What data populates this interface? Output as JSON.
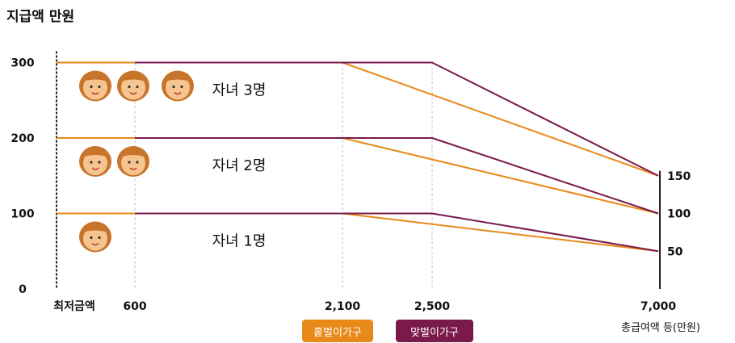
{
  "chart_data": {
    "type": "line",
    "ylabel": "지급액 만원",
    "xlabel": "총급여액 등(만원)",
    "x_ticks": [
      "최저금액",
      "600",
      "2,100",
      "2,500",
      "7,000"
    ],
    "y_ticks_left": [
      "0",
      "100",
      "200",
      "300"
    ],
    "y_ticks_right": [
      "50",
      "100",
      "150"
    ],
    "ylim": [
      0,
      300
    ],
    "series": [
      {
        "name": "홑벌이가구",
        "color": "#E8891A",
        "group": "자녀 3명",
        "points": [
          [
            "최저금액",
            300
          ],
          [
            600,
            300
          ],
          [
            2100,
            300
          ],
          [
            7000,
            150
          ]
        ]
      },
      {
        "name": "맞벌이가구",
        "color": "#7A1A4A",
        "group": "자녀 3명",
        "points": [
          [
            600,
            300
          ],
          [
            2500,
            300
          ],
          [
            7000,
            150
          ]
        ]
      },
      {
        "name": "홑벌이가구",
        "color": "#E8891A",
        "group": "자녀 2명",
        "points": [
          [
            "최저금액",
            200
          ],
          [
            600,
            200
          ],
          [
            2100,
            200
          ],
          [
            7000,
            100
          ]
        ]
      },
      {
        "name": "맞벌이가구",
        "color": "#7A1A4A",
        "group": "자녀 2명",
        "points": [
          [
            600,
            200
          ],
          [
            2500,
            200
          ],
          [
            7000,
            100
          ]
        ]
      },
      {
        "name": "홑벌이가구",
        "color": "#E8891A",
        "group": "자녀 1명",
        "points": [
          [
            "최저금액",
            100
          ],
          [
            600,
            100
          ],
          [
            2100,
            100
          ],
          [
            7000,
            50
          ]
        ]
      },
      {
        "name": "맞벌이가구",
        "color": "#7A1A4A",
        "group": "자녀 1명",
        "points": [
          [
            600,
            100
          ],
          [
            2500,
            100
          ],
          [
            7000,
            50
          ]
        ]
      }
    ],
    "group_labels": [
      {
        "text": "자녀 3명",
        "children": 3
      },
      {
        "text": "자녀 2명",
        "children": 2
      },
      {
        "text": "자녀 1명",
        "children": 1
      }
    ],
    "legend": [
      {
        "label": "홑벌이가구",
        "color": "#E8891A"
      },
      {
        "label": "맞벌이가구",
        "color": "#7A1A4A"
      }
    ]
  }
}
